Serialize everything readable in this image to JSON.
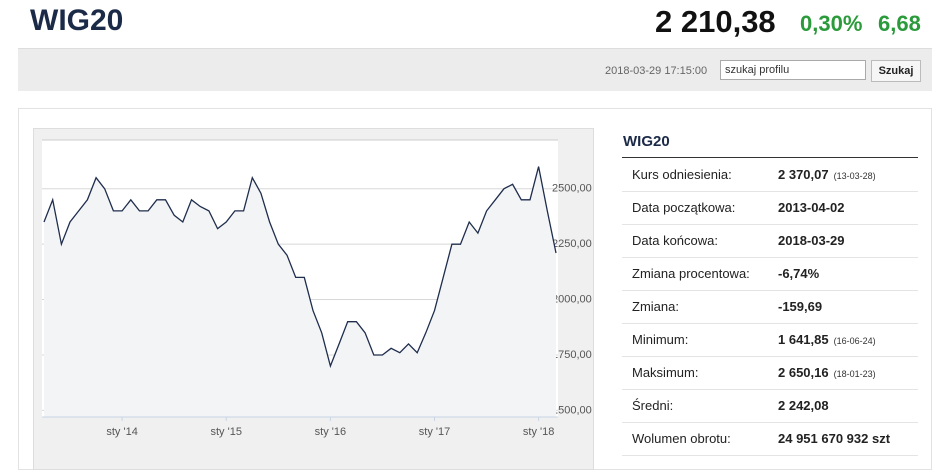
{
  "header": {
    "title": "WIG20",
    "price": "2 210,38",
    "change_pct": "0,30%",
    "change": "6,68"
  },
  "toolbar": {
    "timestamp": "2018-03-29 17:15:00",
    "search_placeholder": "szukaj profilu",
    "button": "Szukaj"
  },
  "stats": {
    "title": "WIG20",
    "rows": [
      {
        "label": "Kurs odniesienia:",
        "value": "2 370,07",
        "date": "(13-03-28)"
      },
      {
        "label": "Data początkowa:",
        "value": "2013-04-02"
      },
      {
        "label": "Data końcowa:",
        "value": "2018-03-29"
      },
      {
        "label": "Zmiana procentowa:",
        "value": "-6,74%"
      },
      {
        "label": "Zmiana:",
        "value": "-159,69"
      },
      {
        "label": "Minimum:",
        "value": "1 641,85",
        "date": "(16-06-24)"
      },
      {
        "label": "Maksimum:",
        "value": "2 650,16",
        "date": "(18-01-23)"
      },
      {
        "label": "Średni:",
        "value": "2 242,08"
      },
      {
        "label": "Wolumen obrotu:",
        "value": "24 951 670 932 szt"
      }
    ]
  },
  "chart_data": {
    "type": "line",
    "color": "#1f2d4d",
    "area_color": "#f3f4f6",
    "grid": true,
    "x": [
      "2013-04",
      "2013-05",
      "2013-06",
      "2013-07",
      "2013-08",
      "2013-09",
      "2013-10",
      "2013-11",
      "2013-12",
      "2014-01",
      "2014-02",
      "2014-03",
      "2014-04",
      "2014-05",
      "2014-06",
      "2014-07",
      "2014-08",
      "2014-09",
      "2014-10",
      "2014-11",
      "2014-12",
      "2015-01",
      "2015-02",
      "2015-03",
      "2015-04",
      "2015-05",
      "2015-06",
      "2015-07",
      "2015-08",
      "2015-09",
      "2015-10",
      "2015-11",
      "2015-12",
      "2016-01",
      "2016-02",
      "2016-03",
      "2016-04",
      "2016-05",
      "2016-06",
      "2016-07",
      "2016-08",
      "2016-09",
      "2016-10",
      "2016-11",
      "2016-12",
      "2017-01",
      "2017-02",
      "2017-03",
      "2017-04",
      "2017-05",
      "2017-06",
      "2017-07",
      "2017-08",
      "2017-09",
      "2017-10",
      "2017-11",
      "2017-12",
      "2018-01",
      "2018-02",
      "2018-03"
    ],
    "values": [
      2350,
      2450,
      2250,
      2350,
      2400,
      2450,
      2550,
      2500,
      2400,
      2400,
      2450,
      2400,
      2400,
      2450,
      2450,
      2380,
      2350,
      2450,
      2420,
      2400,
      2320,
      2350,
      2400,
      2400,
      2550,
      2480,
      2350,
      2250,
      2200,
      2100,
      2100,
      1950,
      1850,
      1700,
      1800,
      1900,
      1900,
      1850,
      1750,
      1750,
      1780,
      1760,
      1800,
      1760,
      1850,
      1950,
      2100,
      2250,
      2250,
      2350,
      2300,
      2400,
      2450,
      2500,
      2520,
      2450,
      2450,
      2600,
      2400,
      2210
    ],
    "xlim": [
      "2013-04",
      "2018-03"
    ],
    "xticks": [
      {
        "value": "2014-01",
        "label": "sty '14"
      },
      {
        "value": "2015-01",
        "label": "sty '15"
      },
      {
        "value": "2016-01",
        "label": "sty '16"
      },
      {
        "value": "2017-01",
        "label": "sty '17"
      },
      {
        "value": "2018-01",
        "label": "sty '18"
      }
    ],
    "ylim": [
      1470,
      2720
    ],
    "yticks": [
      {
        "value": 1500,
        "label": "1500,00"
      },
      {
        "value": 1750,
        "label": "1750,00"
      },
      {
        "value": 2000,
        "label": "2000,00"
      },
      {
        "value": 2250,
        "label": "2250,00"
      },
      {
        "value": 2500,
        "label": "2500,00"
      }
    ]
  }
}
